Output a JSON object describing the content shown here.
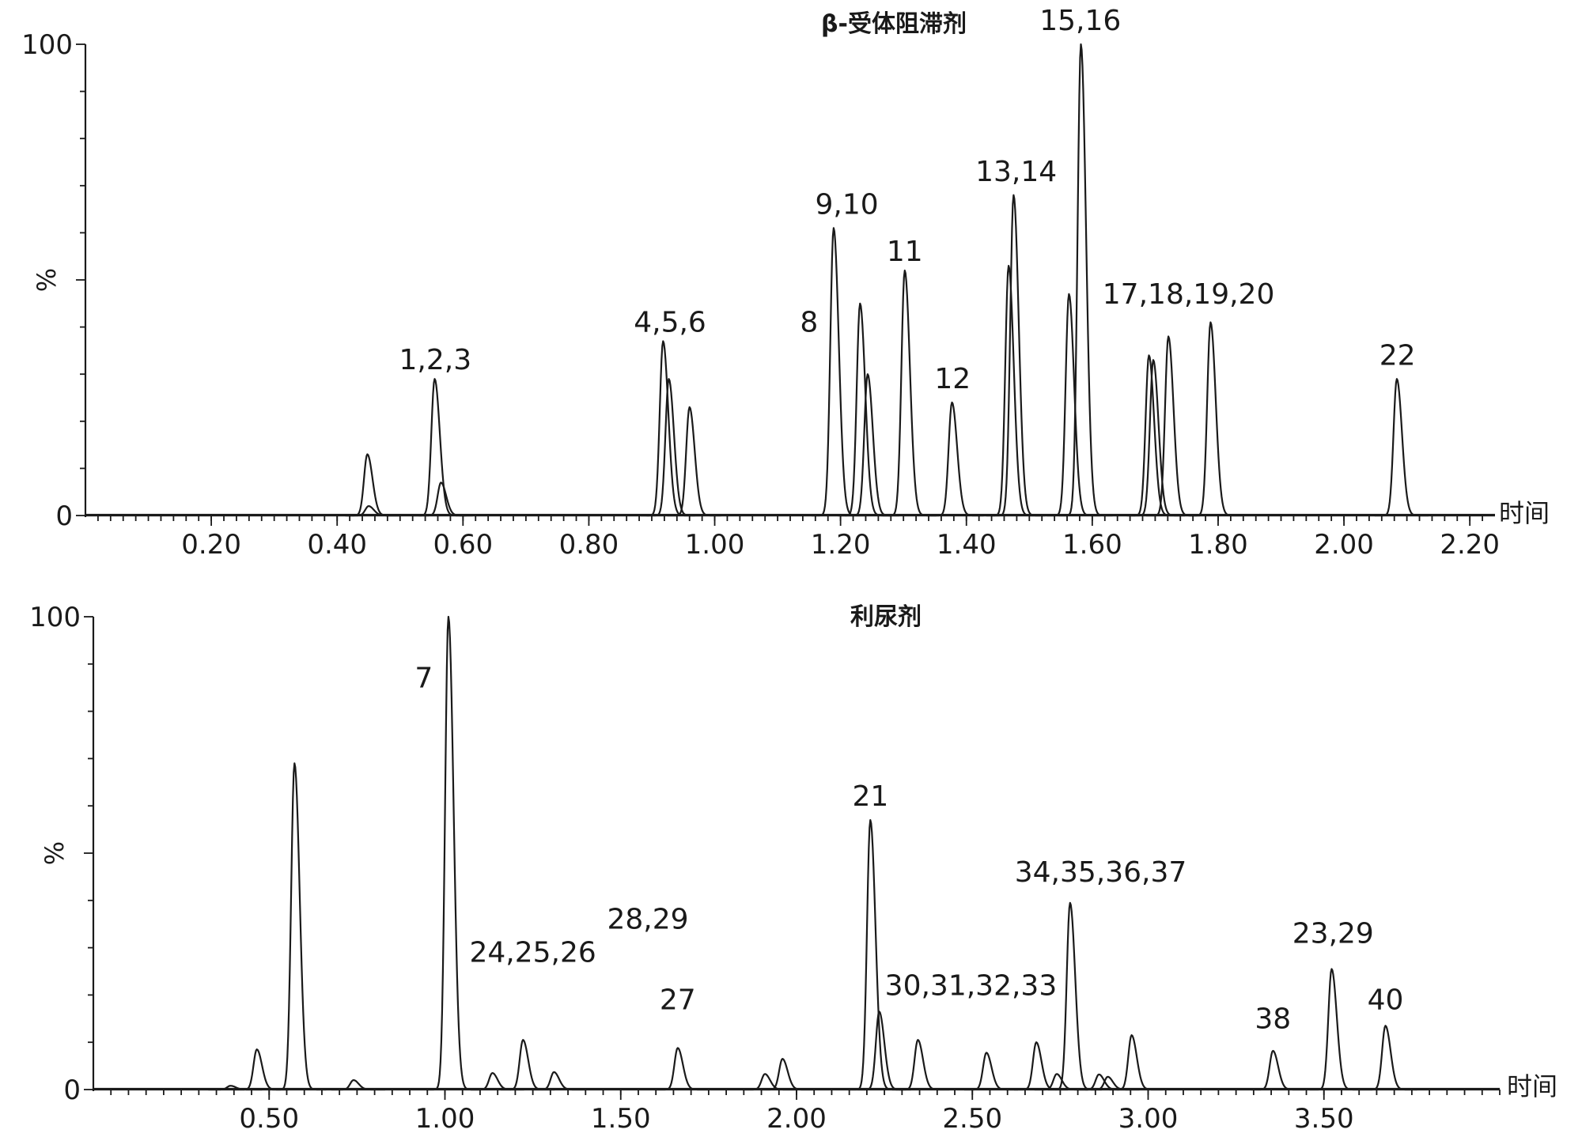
{
  "chart_data": [
    {
      "type": "line",
      "title": "β-受体阻滞剂",
      "xlabel": "时间",
      "ylabel": "%",
      "xlim": [
        0.0,
        2.24
      ],
      "ylim": [
        0,
        100
      ],
      "x_ticks": [
        "0.20",
        "0.40",
        "0.60",
        "0.80",
        "1.00",
        "1.20",
        "1.40",
        "1.60",
        "1.80",
        "2.00",
        "2.20"
      ],
      "y_ticks": [
        "0",
        "100"
      ],
      "y_mid_label": "%",
      "peaks": [
        {
          "x": 0.448,
          "y": 13
        },
        {
          "x": 0.45,
          "y": 2
        },
        {
          "x": 0.555,
          "y": 29
        },
        {
          "x": 0.565,
          "y": 7
        },
        {
          "x": 0.918,
          "y": 37
        },
        {
          "x": 0.927,
          "y": 29
        },
        {
          "x": 0.96,
          "y": 23
        },
        {
          "x": 1.189,
          "y": 61
        },
        {
          "x": 1.231,
          "y": 45
        },
        {
          "x": 1.243,
          "y": 30
        },
        {
          "x": 1.302,
          "y": 52
        },
        {
          "x": 1.377,
          "y": 24
        },
        {
          "x": 1.467,
          "y": 53
        },
        {
          "x": 1.475,
          "y": 68
        },
        {
          "x": 1.563,
          "y": 47
        },
        {
          "x": 1.582,
          "y": 100
        },
        {
          "x": 1.69,
          "y": 34
        },
        {
          "x": 1.697,
          "y": 33
        },
        {
          "x": 1.721,
          "y": 38
        },
        {
          "x": 1.788,
          "y": 41
        },
        {
          "x": 2.084,
          "y": 29
        }
      ],
      "annotations": [
        {
          "text": "1,2,3",
          "x": 0.556,
          "y": 31
        },
        {
          "text": "4,5,6",
          "x": 0.929,
          "y": 39
        },
        {
          "text": "8",
          "x": 1.15,
          "y": 39
        },
        {
          "text": "9,10",
          "x": 1.21,
          "y": 64
        },
        {
          "text": "11",
          "x": 1.302,
          "y": 54
        },
        {
          "text": "12",
          "x": 1.378,
          "y": 27
        },
        {
          "text": "13,14",
          "x": 1.479,
          "y": 71
        },
        {
          "text": "15,16",
          "x": 1.581,
          "y": 103
        },
        {
          "text": "17,18,19,20",
          "x": 1.753,
          "y": 45
        },
        {
          "text": "22",
          "x": 2.085,
          "y": 32
        }
      ]
    },
    {
      "type": "line",
      "title": "利尿剂",
      "xlabel": "时间",
      "ylabel": "%",
      "xlim": [
        0.0,
        4.0
      ],
      "ylim": [
        0,
        100
      ],
      "x_ticks": [
        "0.50",
        "1.00",
        "1.50",
        "2.00",
        "2.50",
        "3.00",
        "3.50"
      ],
      "y_ticks": [
        "0",
        "100"
      ],
      "y_mid_label": "%",
      "peaks": [
        {
          "x": 0.39,
          "y": 0.8
        },
        {
          "x": 0.465,
          "y": 8.5
        },
        {
          "x": 0.572,
          "y": 69
        },
        {
          "x": 0.74,
          "y": 2
        },
        {
          "x": 1.01,
          "y": 100
        },
        {
          "x": 1.135,
          "y": 3.5
        },
        {
          "x": 1.222,
          "y": 10.5
        },
        {
          "x": 1.31,
          "y": 3.7
        },
        {
          "x": 1.662,
          "y": 8.8
        },
        {
          "x": 1.91,
          "y": 3.3
        },
        {
          "x": 1.96,
          "y": 6.5
        },
        {
          "x": 2.21,
          "y": 57
        },
        {
          "x": 2.235,
          "y": 16.5
        },
        {
          "x": 2.345,
          "y": 10.5
        },
        {
          "x": 2.54,
          "y": 7.8
        },
        {
          "x": 2.682,
          "y": 10
        },
        {
          "x": 2.74,
          "y": 3.3
        },
        {
          "x": 2.778,
          "y": 39.5
        },
        {
          "x": 2.86,
          "y": 3.2
        },
        {
          "x": 2.885,
          "y": 2.7
        },
        {
          "x": 2.953,
          "y": 11.5
        },
        {
          "x": 3.355,
          "y": 8.2
        },
        {
          "x": 3.522,
          "y": 25.5
        },
        {
          "x": 3.675,
          "y": 13.5
        }
      ],
      "annotations": [
        {
          "text": "7",
          "x": 0.94,
          "y": 85
        },
        {
          "text": "24,25,26",
          "x": 1.25,
          "y": 27
        },
        {
          "text": "28,29",
          "x": 1.577,
          "y": 34
        },
        {
          "text": "27",
          "x": 1.662,
          "y": 17
        },
        {
          "text": "21",
          "x": 2.21,
          "y": 60
        },
        {
          "text": "30,31,32,33",
          "x": 2.496,
          "y": 20
        },
        {
          "text": "34,35,36,37",
          "x": 2.865,
          "y": 44
        },
        {
          "text": "38",
          "x": 3.355,
          "y": 13
        },
        {
          "text": "23,29",
          "x": 3.526,
          "y": 31
        },
        {
          "text": "40",
          "x": 3.675,
          "y": 17
        }
      ]
    }
  ]
}
